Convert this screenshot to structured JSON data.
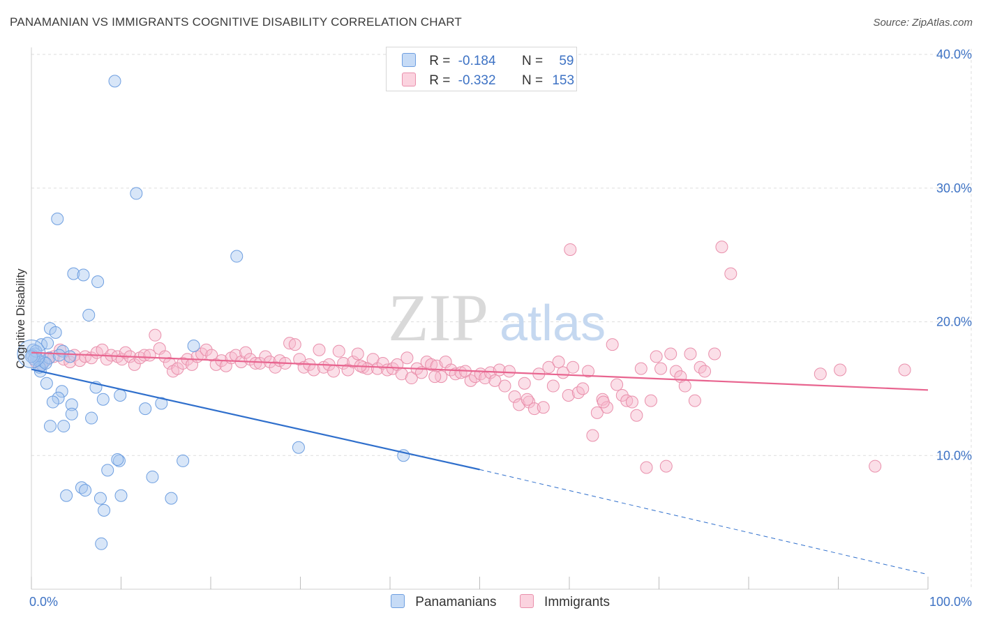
{
  "header": {
    "title": "PANAMANIAN VS IMMIGRANTS COGNITIVE DISABILITY CORRELATION CHART",
    "source": "Source: ZipAtlas.com"
  },
  "legend": {
    "rows": [
      {
        "r_label": "R =",
        "r_value": "-0.184",
        "n_label": "N =",
        "n_value": "59",
        "color": "#a9c8f0"
      },
      {
        "r_label": "R =",
        "r_value": "-0.332",
        "n_label": "N =",
        "n_value": "153",
        "color": "#f7b8cb"
      }
    ],
    "bottom": [
      {
        "label": "Panamanians",
        "color": "#a9c8f0"
      },
      {
        "label": "Immigrants",
        "color": "#f7b8cb"
      }
    ]
  },
  "colors": {
    "blue_fill": "#a9c8f0",
    "blue_stroke": "#6d9ee0",
    "blue_line": "#2f6fcc",
    "pink_fill": "#f7b8cb",
    "pink_stroke": "#e98fab",
    "pink_line": "#e8648f",
    "tick_text": "#3d72c4",
    "grid": "#dddddd",
    "watermark": "#d9d9d9",
    "watermark_atlas": "#c5d8f0"
  },
  "chart_data": {
    "type": "scatter",
    "ylabel": "Cognitive Disability",
    "xlim": [
      0,
      100
    ],
    "ylim": [
      0,
      40
    ],
    "x_tick_labels": [
      {
        "value": 0,
        "label": "0.0%"
      },
      {
        "value": 100,
        "label": "100.0%"
      }
    ],
    "y_tick_labels": [
      {
        "value": 10,
        "label": "10.0%"
      },
      {
        "value": 20,
        "label": "20.0%"
      },
      {
        "value": 30,
        "label": "30.0%"
      },
      {
        "value": 40,
        "label": "40.0%"
      }
    ],
    "x_minor_ticks": [
      0,
      10,
      20,
      30,
      40,
      50,
      60,
      70,
      80,
      90,
      100
    ],
    "grid": true,
    "watermark": {
      "zip": "ZIP",
      "atlas": "atlas"
    },
    "series": [
      {
        "name": "Panamanians",
        "points": [
          [
            9.3,
            38.0
          ],
          [
            11.7,
            29.6
          ],
          [
            2.9,
            27.7
          ],
          [
            22.9,
            24.9
          ],
          [
            4.7,
            23.6
          ],
          [
            5.8,
            23.5
          ],
          [
            7.4,
            23.0
          ],
          [
            6.4,
            20.5
          ],
          [
            2.1,
            19.5
          ],
          [
            2.7,
            19.2
          ],
          [
            1.1,
            18.3
          ],
          [
            1.8,
            18.4
          ],
          [
            0.2,
            17.9
          ],
          [
            0.4,
            17.6
          ],
          [
            0.6,
            17.3
          ],
          [
            0.8,
            17.1
          ],
          [
            1.2,
            16.8
          ],
          [
            3.5,
            17.8
          ],
          [
            4.3,
            17.4
          ],
          [
            1.0,
            16.3
          ],
          [
            1.7,
            15.4
          ],
          [
            7.2,
            15.1
          ],
          [
            3.4,
            14.8
          ],
          [
            3.0,
            14.3
          ],
          [
            2.4,
            14.0
          ],
          [
            8.0,
            14.2
          ],
          [
            9.9,
            14.5
          ],
          [
            4.5,
            13.8
          ],
          [
            14.5,
            13.9
          ],
          [
            12.7,
            13.5
          ],
          [
            4.5,
            13.1
          ],
          [
            6.7,
            12.8
          ],
          [
            2.1,
            12.2
          ],
          [
            3.6,
            12.2
          ],
          [
            18.1,
            18.2
          ],
          [
            29.8,
            10.6
          ],
          [
            41.5,
            10.0
          ],
          [
            16.9,
            9.6
          ],
          [
            9.8,
            9.6
          ],
          [
            9.6,
            9.7
          ],
          [
            8.5,
            8.9
          ],
          [
            13.5,
            8.4
          ],
          [
            5.6,
            7.6
          ],
          [
            6.0,
            7.4
          ],
          [
            3.9,
            7.0
          ],
          [
            10.0,
            7.0
          ],
          [
            7.7,
            6.8
          ],
          [
            15.6,
            6.8
          ],
          [
            8.1,
            5.9
          ],
          [
            7.8,
            3.4
          ],
          [
            0.1,
            17.5
          ],
          [
            0.3,
            17.2
          ],
          [
            0.5,
            17.8
          ],
          [
            1.4,
            17.0
          ],
          [
            2.0,
            17.3
          ],
          [
            0.9,
            16.6
          ],
          [
            1.6,
            16.9
          ],
          [
            3.1,
            17.5
          ],
          [
            0.0,
            17.4
          ]
        ]
      },
      {
        "name": "Immigrants",
        "points": [
          [
            0.5,
            17.0
          ],
          [
            1.1,
            16.8
          ],
          [
            1.8,
            17.2
          ],
          [
            2.5,
            17.4
          ],
          [
            3.2,
            17.9
          ],
          [
            3.6,
            17.2
          ],
          [
            4.3,
            17.0
          ],
          [
            4.8,
            17.5
          ],
          [
            5.4,
            17.1
          ],
          [
            6.0,
            17.4
          ],
          [
            6.7,
            17.3
          ],
          [
            7.3,
            17.7
          ],
          [
            7.9,
            17.9
          ],
          [
            8.4,
            17.2
          ],
          [
            8.9,
            17.5
          ],
          [
            9.6,
            17.4
          ],
          [
            10.1,
            17.2
          ],
          [
            10.5,
            17.7
          ],
          [
            11.0,
            17.4
          ],
          [
            11.5,
            16.8
          ],
          [
            12.1,
            17.3
          ],
          [
            12.6,
            17.5
          ],
          [
            13.2,
            17.5
          ],
          [
            13.8,
            19.0
          ],
          [
            14.3,
            18.0
          ],
          [
            14.9,
            17.4
          ],
          [
            15.4,
            16.9
          ],
          [
            15.8,
            16.3
          ],
          [
            16.3,
            16.5
          ],
          [
            16.9,
            16.9
          ],
          [
            17.4,
            17.2
          ],
          [
            17.9,
            16.8
          ],
          [
            18.5,
            17.4
          ],
          [
            19.0,
            17.6
          ],
          [
            19.5,
            17.9
          ],
          [
            20.1,
            17.5
          ],
          [
            20.6,
            16.8
          ],
          [
            21.2,
            17.1
          ],
          [
            21.7,
            16.7
          ],
          [
            22.3,
            17.3
          ],
          [
            22.8,
            17.5
          ],
          [
            23.4,
            17.0
          ],
          [
            23.9,
            17.7
          ],
          [
            24.4,
            17.2
          ],
          [
            25.0,
            16.9
          ],
          [
            25.5,
            16.9
          ],
          [
            26.1,
            17.4
          ],
          [
            26.6,
            17.0
          ],
          [
            27.2,
            16.6
          ],
          [
            27.7,
            17.1
          ],
          [
            28.3,
            16.9
          ],
          [
            28.8,
            18.4
          ],
          [
            29.4,
            18.3
          ],
          [
            29.9,
            17.2
          ],
          [
            30.4,
            16.6
          ],
          [
            31.0,
            16.8
          ],
          [
            31.5,
            16.4
          ],
          [
            32.1,
            17.9
          ],
          [
            32.6,
            16.6
          ],
          [
            33.2,
            16.8
          ],
          [
            33.7,
            16.3
          ],
          [
            34.3,
            17.8
          ],
          [
            34.8,
            16.9
          ],
          [
            35.3,
            16.4
          ],
          [
            35.9,
            17.0
          ],
          [
            36.4,
            17.6
          ],
          [
            37.0,
            16.6
          ],
          [
            37.5,
            16.5
          ],
          [
            38.1,
            17.2
          ],
          [
            38.6,
            16.5
          ],
          [
            39.2,
            16.9
          ],
          [
            39.7,
            16.4
          ],
          [
            40.3,
            16.5
          ],
          [
            40.8,
            16.8
          ],
          [
            41.3,
            16.1
          ],
          [
            41.9,
            17.3
          ],
          [
            42.4,
            15.8
          ],
          [
            43.0,
            16.5
          ],
          [
            43.5,
            16.2
          ],
          [
            44.1,
            17.0
          ],
          [
            44.6,
            16.8
          ],
          [
            45.2,
            16.7
          ],
          [
            45.7,
            15.9
          ],
          [
            46.2,
            17.0
          ],
          [
            46.8,
            16.4
          ],
          [
            47.3,
            16.1
          ],
          [
            47.9,
            16.2
          ],
          [
            48.4,
            16.3
          ],
          [
            49.0,
            15.6
          ],
          [
            49.5,
            15.9
          ],
          [
            50.1,
            16.1
          ],
          [
            50.6,
            15.8
          ],
          [
            51.2,
            16.2
          ],
          [
            51.7,
            15.6
          ],
          [
            52.2,
            16.4
          ],
          [
            52.8,
            15.2
          ],
          [
            53.3,
            16.3
          ],
          [
            53.9,
            14.4
          ],
          [
            54.4,
            13.8
          ],
          [
            55.0,
            15.4
          ],
          [
            55.5,
            14.0
          ],
          [
            56.1,
            13.5
          ],
          [
            56.6,
            16.1
          ],
          [
            57.1,
            13.6
          ],
          [
            57.7,
            16.6
          ],
          [
            58.2,
            15.2
          ],
          [
            58.8,
            17.0
          ],
          [
            59.3,
            16.2
          ],
          [
            59.9,
            14.5
          ],
          [
            60.4,
            16.6
          ],
          [
            61.0,
            14.7
          ],
          [
            61.5,
            15.0
          ],
          [
            62.1,
            16.3
          ],
          [
            62.6,
            11.5
          ],
          [
            63.1,
            13.2
          ],
          [
            63.7,
            14.2
          ],
          [
            64.2,
            13.6
          ],
          [
            64.8,
            18.3
          ],
          [
            65.3,
            15.3
          ],
          [
            65.9,
            14.5
          ],
          [
            66.4,
            14.1
          ],
          [
            67.0,
            14.0
          ],
          [
            67.5,
            13.0
          ],
          [
            68.0,
            16.5
          ],
          [
            68.6,
            9.1
          ],
          [
            69.1,
            14.1
          ],
          [
            69.7,
            17.4
          ],
          [
            70.2,
            16.5
          ],
          [
            70.8,
            9.2
          ],
          [
            71.3,
            17.6
          ],
          [
            71.9,
            16.3
          ],
          [
            72.4,
            15.9
          ],
          [
            72.9,
            15.2
          ],
          [
            73.5,
            17.6
          ],
          [
            74.0,
            14.1
          ],
          [
            74.6,
            16.6
          ],
          [
            75.1,
            16.3
          ],
          [
            77.0,
            25.6
          ],
          [
            78.0,
            23.6
          ],
          [
            76.2,
            17.6
          ],
          [
            60.1,
            25.4
          ],
          [
            55.3,
            14.2
          ],
          [
            90.2,
            16.4
          ],
          [
            97.4,
            16.4
          ],
          [
            94.1,
            9.2
          ],
          [
            63.8,
            14.0
          ],
          [
            88.0,
            16.1
          ],
          [
            45.0,
            15.9
          ],
          [
            36.7,
            16.7
          ]
        ]
      }
    ],
    "trend_lines": [
      {
        "series": "Panamanians",
        "x0": 0,
        "y0": 16.45,
        "x1": 50,
        "y1": 8.95,
        "dashed_to_x": 100,
        "dashed_to_y": 1.1
      },
      {
        "series": "Immigrants",
        "x0": 0,
        "y0": 17.7,
        "x1": 100,
        "y1": 14.9
      }
    ]
  }
}
